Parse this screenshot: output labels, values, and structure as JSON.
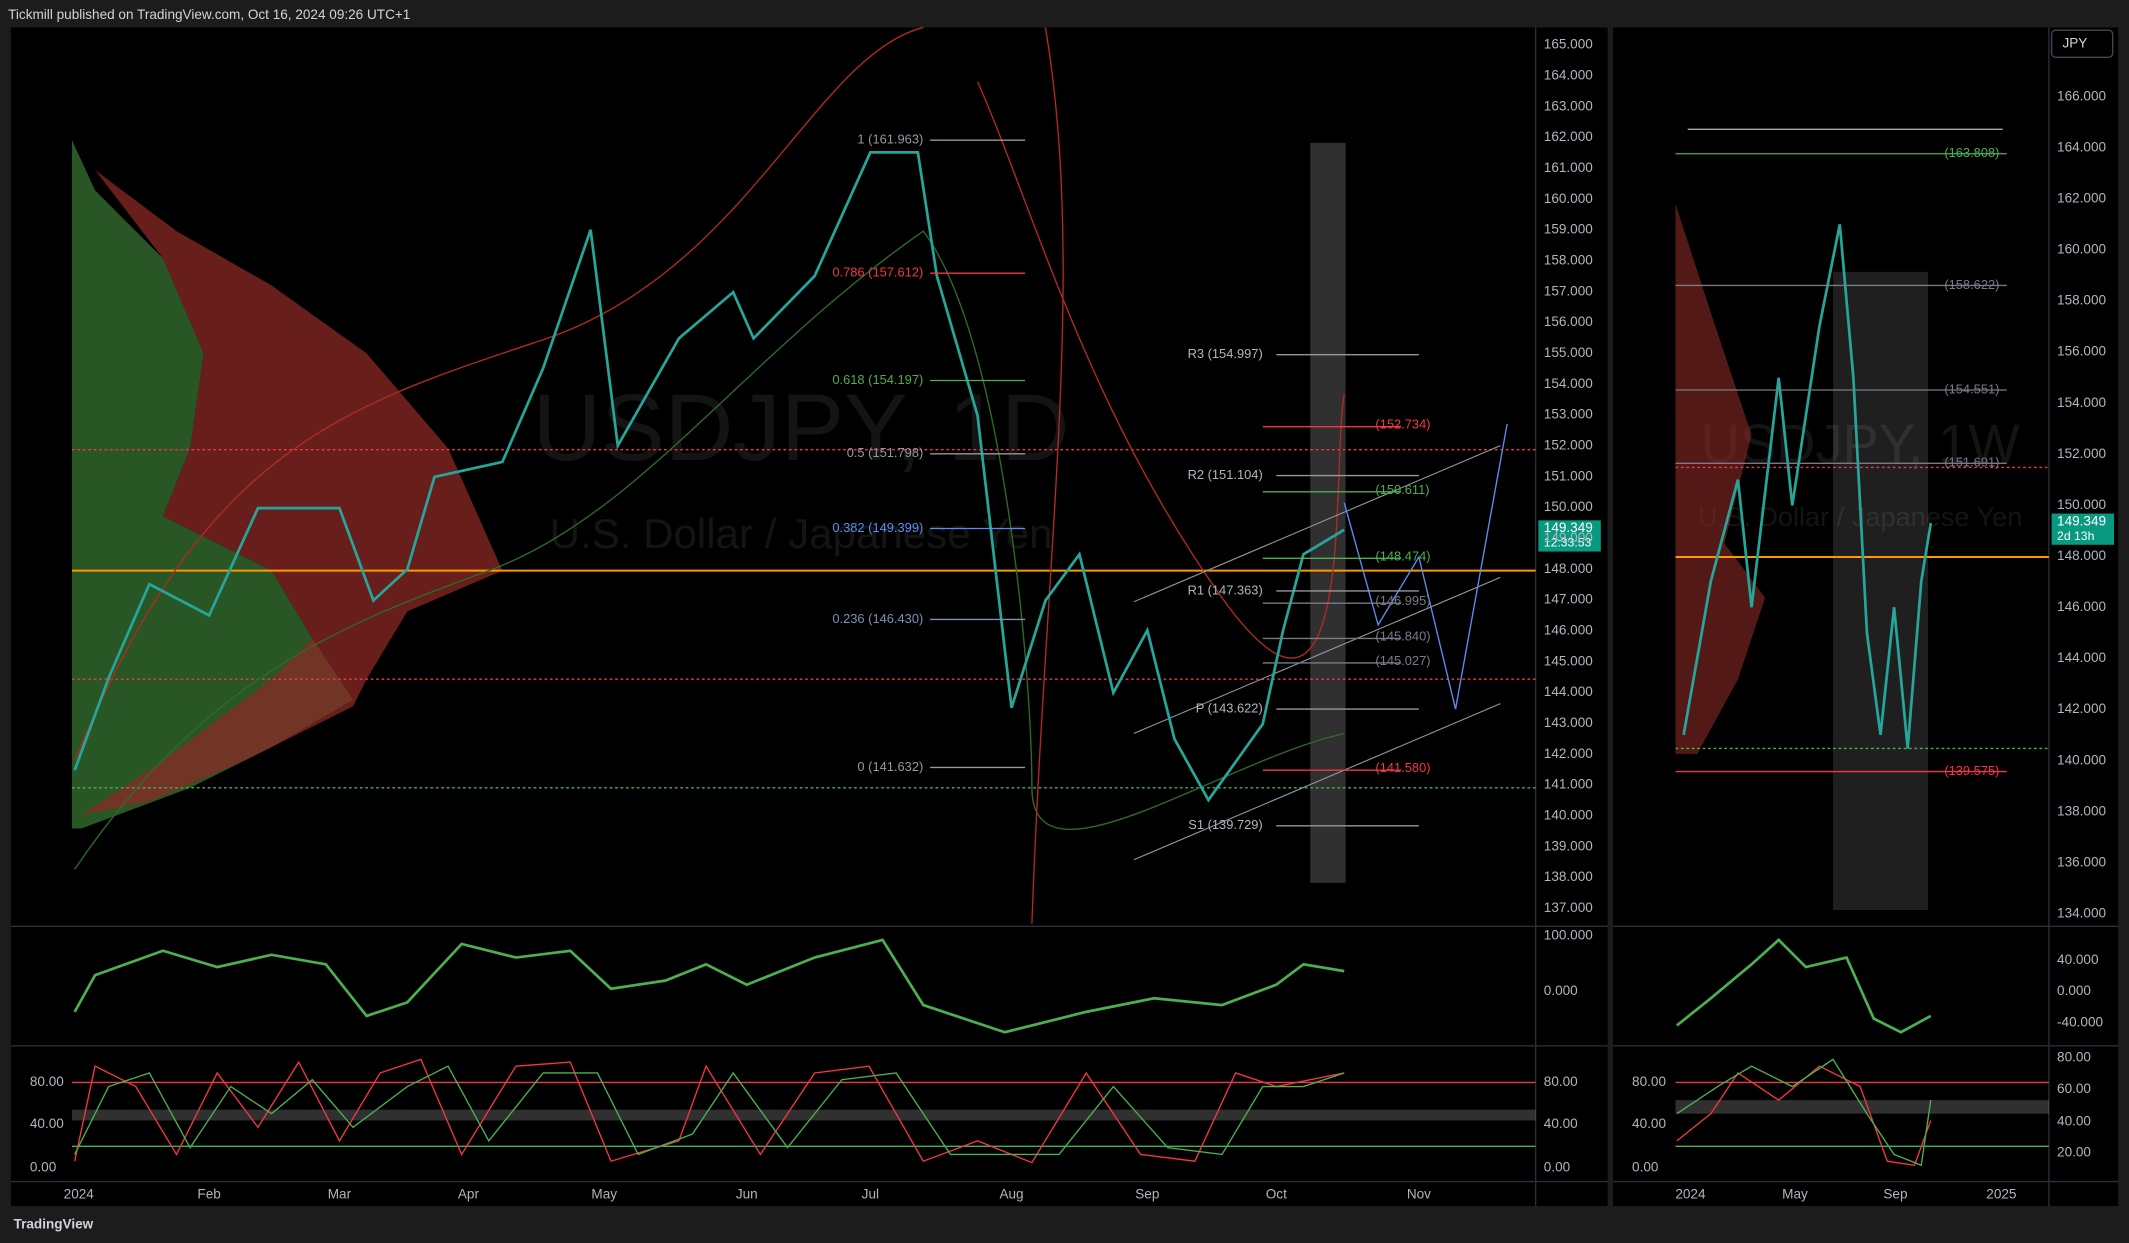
{
  "header": {
    "publisher": "Tickmill published on TradingView.com, Oct 16, 2024 09:26 UTC+1"
  },
  "main_chart": {
    "watermark_symbol": "USDJPY, 1D",
    "watermark_name": "U.S. Dollar / Japanese Yen",
    "price_axis": [
      "165.000",
      "164.000",
      "163.000",
      "162.000",
      "161.000",
      "160.000",
      "159.000",
      "158.000",
      "157.000",
      "156.000",
      "155.000",
      "154.000",
      "153.000",
      "152.000",
      "151.000",
      "150.000",
      "149.000",
      "148.000",
      "147.000",
      "146.000",
      "145.000",
      "144.000",
      "143.000",
      "142.000",
      "141.000",
      "140.000",
      "139.000",
      "138.000",
      "137.000"
    ],
    "last_price": "149.349",
    "countdown": "12:33:53",
    "fib_levels": [
      "1 (161.963)",
      "0.786 (157.612)",
      "0.618 (154.197)",
      "0.5 (151.798)",
      "0.382 (149.399)",
      "0.236 (146.430)",
      "0 (141.632)"
    ],
    "pivots": [
      "R3 (154.997)",
      "R2 (151.104)",
      "R1 (147.363)",
      "P (143.622)",
      "S1 (139.729)"
    ],
    "level_labels": [
      "(152.734)",
      "(150.611)",
      "(148.474)",
      "(146.995)",
      "(145.840)",
      "(145.027)",
      "(141.580)"
    ],
    "time_axis": [
      "2024",
      "Feb",
      "Mar",
      "Apr",
      "May",
      "Jun",
      "Jul",
      "Aug",
      "Sep",
      "Oct",
      "Nov"
    ],
    "oscillator_axis": [
      "100.000",
      "0.000"
    ],
    "stoch_axis": [
      "80.00",
      "40.00",
      "0.00"
    ]
  },
  "weekly_chart": {
    "currency": "JPY",
    "watermark_symbol": "USDJPY, 1W",
    "watermark_name": "U.S. Dollar / Japanese Yen",
    "price_axis": [
      "166.000",
      "164.000",
      "162.000",
      "160.000",
      "158.000",
      "156.000",
      "154.000",
      "152.000",
      "150.000",
      "148.000",
      "146.000",
      "144.000",
      "142.000",
      "140.000",
      "138.000",
      "136.000",
      "134.000"
    ],
    "last_price": "149.349",
    "countdown": "2d 13h",
    "level_labels": [
      "(163.808)",
      "(158.622)",
      "(154.551)",
      "(151.691)",
      "(139.575)"
    ],
    "time_axis": [
      "2024",
      "May",
      "Sep",
      "2025"
    ],
    "oscillator_axis": [
      "40.000",
      "0.000",
      "-40.000"
    ],
    "stoch_axis": [
      "80.00",
      "60.00",
      "40.00",
      "20.00"
    ],
    "stoch_left_axis": [
      "80.00",
      "40.00",
      "0.00"
    ]
  },
  "footer": {
    "brand": "TradingView"
  }
}
